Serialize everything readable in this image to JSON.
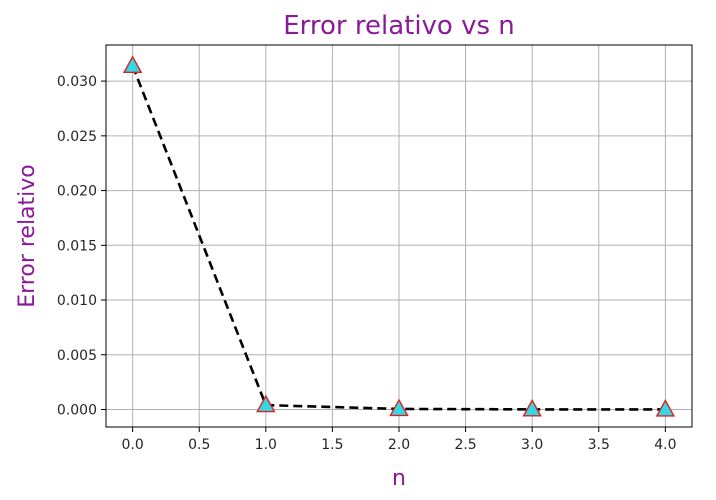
{
  "chart_data": {
    "type": "line",
    "title": "Error relativo vs n",
    "xlabel": "n",
    "ylabel": "Error relativo",
    "xlim": [
      -0.2,
      4.2
    ],
    "ylim": [
      -0.0016,
      0.0333
    ],
    "xticks": [
      0.0,
      0.5,
      1.0,
      1.5,
      2.0,
      2.5,
      3.0,
      3.5,
      4.0
    ],
    "xtick_labels": [
      "0.0",
      "0.5",
      "1.0",
      "1.5",
      "2.0",
      "2.5",
      "3.0",
      "3.5",
      "4.0"
    ],
    "yticks": [
      0.0,
      0.005,
      0.01,
      0.015,
      0.02,
      0.025,
      0.03
    ],
    "ytick_labels": [
      "0.000",
      "0.005",
      "0.010",
      "0.015",
      "0.020",
      "0.025",
      "0.030"
    ],
    "grid": true,
    "series": [
      {
        "x": [
          0,
          1,
          2,
          3,
          4
        ],
        "values": [
          0.0314,
          0.0004,
          5e-05,
          1e-05,
          0.0
        ],
        "line_style": "dashed",
        "line_color": "#000000",
        "marker": "triangle",
        "marker_face": "#34d8e4",
        "marker_edge": "#e02020"
      }
    ],
    "title_color": "#8b1a99",
    "label_color": "#8b1a99"
  }
}
